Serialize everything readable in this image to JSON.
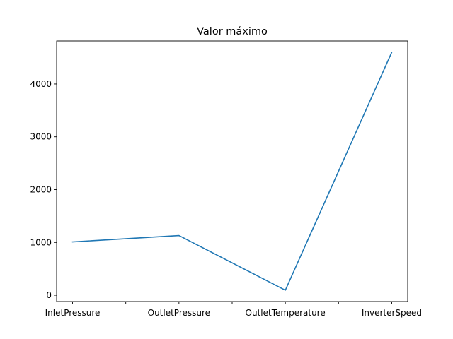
{
  "chart_data": {
    "type": "line",
    "title": "Valor máximo",
    "xlabel": "",
    "ylabel": "",
    "categories": [
      "InletPressure",
      "OutletPressure",
      "OutletTemperature",
      "InverterSpeed"
    ],
    "x_positions": [
      0,
      1,
      2,
      3
    ],
    "x_ticks": [
      0,
      0.5,
      1,
      1.5,
      2,
      2.5,
      3
    ],
    "x_tick_labels": [
      "InletPressure",
      "",
      "OutletPressure",
      "",
      "OutletTemperature",
      "",
      "InverterSpeed"
    ],
    "series": [
      {
        "values": [
          1010,
          1130,
          95,
          4600
        ],
        "color": "#1f77b4"
      }
    ],
    "xlim": [
      -0.15,
      3.15
    ],
    "ylim": [
      -120,
      4815
    ],
    "yticks": [
      0,
      1000,
      2000,
      3000,
      4000
    ],
    "ytick_labels": [
      "0",
      "1000",
      "2000",
      "3000",
      "4000"
    ],
    "grid": false,
    "legend": "none"
  }
}
